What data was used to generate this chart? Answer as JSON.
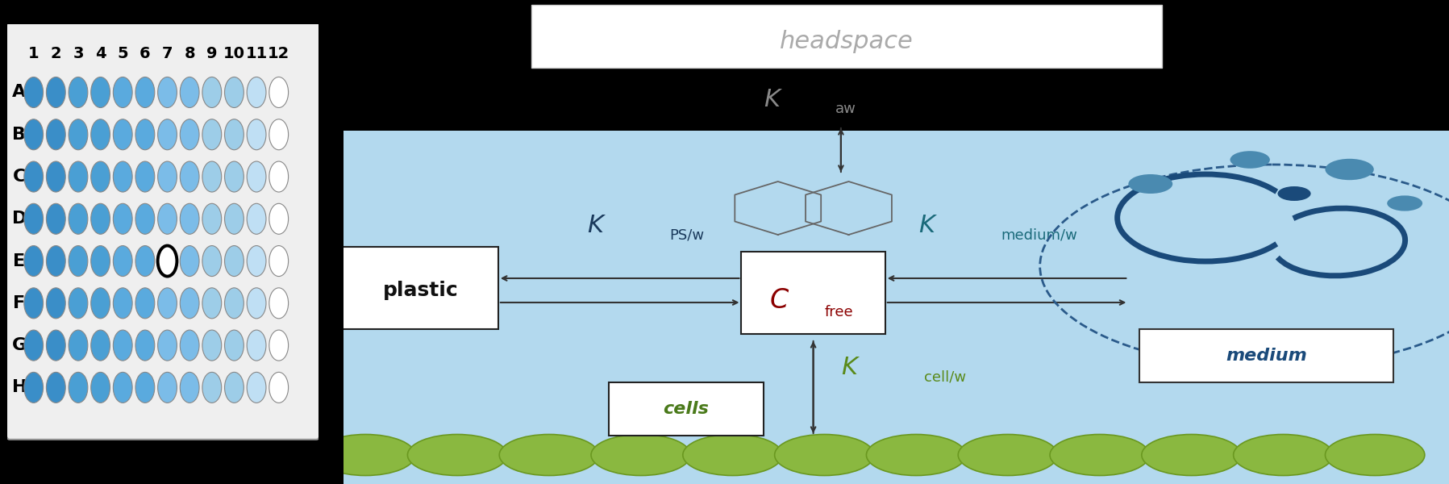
{
  "fig_width": 17.97,
  "fig_height": 6.0,
  "dpi": 100,
  "plate_rows": [
    "A",
    "B",
    "C",
    "D",
    "E",
    "F",
    "G",
    "H"
  ],
  "plate_cols": [
    1,
    2,
    3,
    4,
    5,
    6,
    7,
    8,
    9,
    10,
    11,
    12
  ],
  "plate_bg": "#efefef",
  "plate_border": "#999999",
  "well_outline": "#888888",
  "well_colors_by_col": {
    "1": "#3a8ec8",
    "2": "#3a8ec8",
    "3": "#4a9fd4",
    "4": "#4a9fd4",
    "5": "#5aaade",
    "6": "#5aaade",
    "7": "#7bbce8",
    "8": "#7bbce8",
    "9": "#9dcde8",
    "10": "#9dcde8",
    "11": "#bfdff4",
    "12": "#ffffff"
  },
  "special_well": {
    "row": "E",
    "col": 7,
    "outline": "#000000",
    "fill": "white"
  },
  "row_labels_fontsize": 16,
  "col_labels_fontsize": 14,
  "diagram_bg": "#b3d9ee",
  "headspace_text": "headspace",
  "headspace_text_color": "#aaaaaa",
  "kaw_text_color": "#888888",
  "kpsw_text_color": "#1a3a5c",
  "kmedw_text_color": "#1a6a7a",
  "kcellw_text_color": "#5a8a1a",
  "cfree_text_color": "#8b0000",
  "plastic_text_color": "#111111",
  "cells_text_color": "#4a7a1a",
  "medium_text_color": "#1a4a7a",
  "arrow_color": "#333333",
  "cell_ellipse_color": "#8ab840",
  "cell_ellipse_edge": "#6a9820",
  "medium_circle_color": "#2a5a8a",
  "naphthalene_color": "#666666",
  "protein_dark_color": "#1a4a7a",
  "protein_light_color": "#4a8ab0"
}
